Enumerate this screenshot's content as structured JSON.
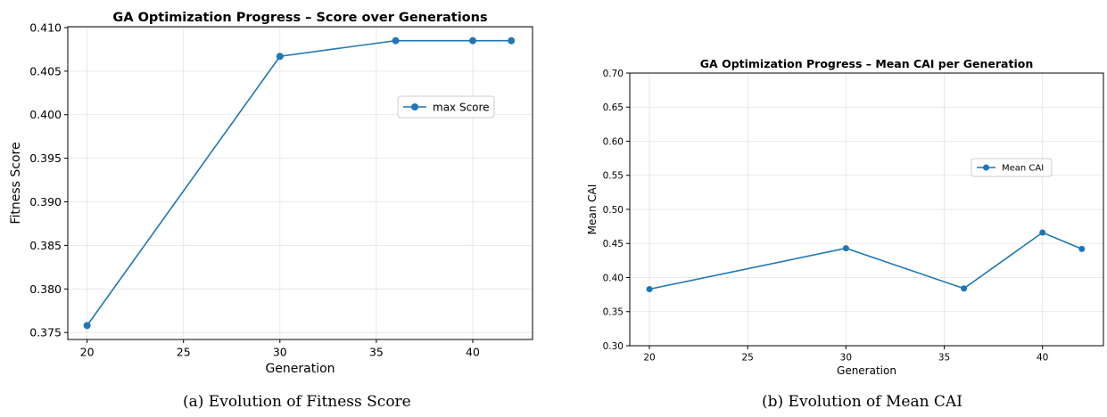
{
  "chart_data": [
    {
      "type": "line",
      "title": "GA Optimization Progress – Score over Generations",
      "xlabel": "Generation",
      "ylabel": "Fitness Score",
      "x": [
        20,
        30,
        36,
        40,
        42
      ],
      "series": [
        {
          "name": "max Score",
          "values": [
            0.3758,
            0.4067,
            0.4085,
            0.4085,
            0.4085
          ],
          "color": "#1f77b4"
        }
      ],
      "xlim": [
        19,
        43.1
      ],
      "ylim": [
        0.3742,
        0.4101
      ],
      "xticks": [
        20,
        25,
        30,
        35,
        40
      ],
      "yticks": [
        0.375,
        0.38,
        0.385,
        0.39,
        0.395,
        0.4,
        0.405,
        0.41
      ],
      "ytick_labels": [
        "0.375",
        "0.380",
        "0.385",
        "0.390",
        "0.395",
        "0.400",
        "0.405",
        "0.410"
      ],
      "grid": true,
      "legend": "upper-right",
      "caption": "(a) Evolution of Fitness Score"
    },
    {
      "type": "line",
      "title": "GA Optimization Progress – Mean CAI per Generation",
      "xlabel": "Generation",
      "ylabel": "Mean CAI",
      "x": [
        20,
        30,
        36,
        40,
        42
      ],
      "series": [
        {
          "name": "Mean CAI",
          "values": [
            0.383,
            0.443,
            0.384,
            0.466,
            0.442
          ],
          "color": "#1f77b4"
        }
      ],
      "xlim": [
        19,
        43.1
      ],
      "ylim": [
        0.3,
        0.7
      ],
      "xticks": [
        20,
        25,
        30,
        35,
        40
      ],
      "yticks": [
        0.3,
        0.35,
        0.4,
        0.45,
        0.5,
        0.55,
        0.6,
        0.65,
        0.7
      ],
      "ytick_labels": [
        "0.30",
        "0.35",
        "0.40",
        "0.45",
        "0.50",
        "0.55",
        "0.60",
        "0.65",
        "0.70"
      ],
      "grid": true,
      "legend": "center-right",
      "caption": "(b) Evolution of Mean CAI"
    }
  ]
}
